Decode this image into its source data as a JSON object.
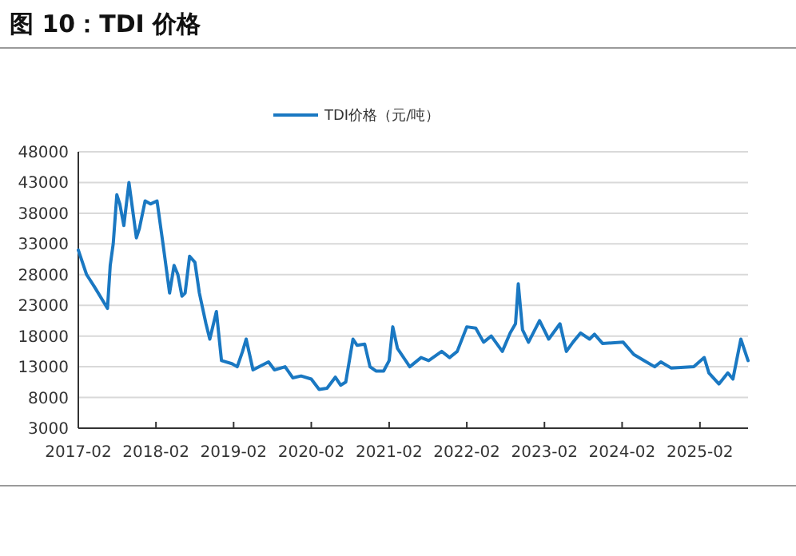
{
  "chart_data": {
    "type": "line",
    "title": "图 10：TDI 价格",
    "x": [
      "2017-02-01",
      "2017-03-12",
      "2017-04-18",
      "2017-06-18",
      "2017-07-01",
      "2017-07-15",
      "2017-08-01",
      "2017-08-15",
      "2017-09-03",
      "2017-09-27",
      "2017-11-01",
      "2017-11-15",
      "2017-12-12",
      "2018-01-06",
      "2018-02-06",
      "2018-03-06",
      "2018-04-06",
      "2018-04-27",
      "2018-05-15",
      "2018-06-03",
      "2018-06-18",
      "2018-07-09",
      "2018-08-03",
      "2018-08-24",
      "2018-09-24",
      "2018-10-12",
      "2018-11-12",
      "2018-12-06",
      "2019-01-24",
      "2019-02-18",
      "2019-03-15",
      "2019-04-01",
      "2019-05-03",
      "2019-07-15",
      "2019-08-12",
      "2019-10-01",
      "2019-11-06",
      "2019-12-15",
      "2020-02-01",
      "2020-03-09",
      "2020-04-15",
      "2020-05-24",
      "2020-06-18",
      "2020-07-12",
      "2020-08-15",
      "2020-09-03",
      "2020-10-09",
      "2020-11-03",
      "2020-12-01",
      "2021-01-06",
      "2021-02-01",
      "2021-02-18",
      "2021-03-12",
      "2021-05-09",
      "2021-07-01",
      "2021-08-06",
      "2021-10-06",
      "2021-11-12",
      "2021-12-18",
      "2022-02-01",
      "2022-03-15",
      "2022-04-21",
      "2022-05-27",
      "2022-07-18",
      "2022-08-24",
      "2022-09-18",
      "2022-10-01",
      "2022-10-21",
      "2022-11-18",
      "2023-01-09",
      "2023-02-21",
      "2023-04-15",
      "2023-05-15",
      "2023-06-15",
      "2023-07-21",
      "2023-09-01",
      "2023-09-24",
      "2023-11-01",
      "2024-02-06",
      "2024-03-27",
      "2024-05-15",
      "2024-07-03",
      "2024-08-01",
      "2024-09-18",
      "2025-01-03",
      "2025-02-21",
      "2025-03-15",
      "2025-05-01",
      "2025-06-12",
      "2025-07-06",
      "2025-08-12",
      "2025-09-15"
    ],
    "series": [
      {
        "name": "TDI价格（元/吨）",
        "color": "#1a78c2",
        "values": [
          32000,
          28000,
          26000,
          22500,
          29500,
          33000,
          41000,
          39500,
          36000,
          43000,
          34000,
          35500,
          40000,
          39500,
          40000,
          33000,
          25000,
          29500,
          28000,
          24500,
          25000,
          31000,
          30000,
          25000,
          20000,
          17500,
          22000,
          14000,
          13500,
          13000,
          15500,
          17500,
          12500,
          13800,
          12500,
          13000,
          11200,
          11500,
          11000,
          9300,
          9500,
          11300,
          10000,
          10500,
          17500,
          16500,
          16700,
          13000,
          12300,
          12300,
          14000,
          19500,
          16000,
          13000,
          14500,
          14000,
          15500,
          14500,
          15500,
          19500,
          19300,
          17000,
          18000,
          15500,
          18500,
          20000,
          26500,
          19000,
          17000,
          20500,
          17500,
          20000,
          15500,
          17000,
          18500,
          17500,
          18300,
          16800,
          17000,
          15000,
          14000,
          13000,
          13800,
          12800,
          13000,
          14500,
          12000,
          10200,
          12000,
          11000,
          17500,
          14000
        ]
      }
    ],
    "xlim": [
      "2017-02-01",
      "2025-09-15"
    ],
    "xticks": [
      "2017-02",
      "2018-02",
      "2019-02",
      "2020-02",
      "2021-02",
      "2022-02",
      "2023-02",
      "2024-02",
      "2025-02"
    ],
    "ylim": [
      3000,
      48000
    ],
    "yticks": [
      3000,
      8000,
      13000,
      18000,
      23000,
      28000,
      33000,
      38000,
      43000,
      48000
    ],
    "grid": "y",
    "legend": "top",
    "marker": "none",
    "line_style": "solid"
  }
}
